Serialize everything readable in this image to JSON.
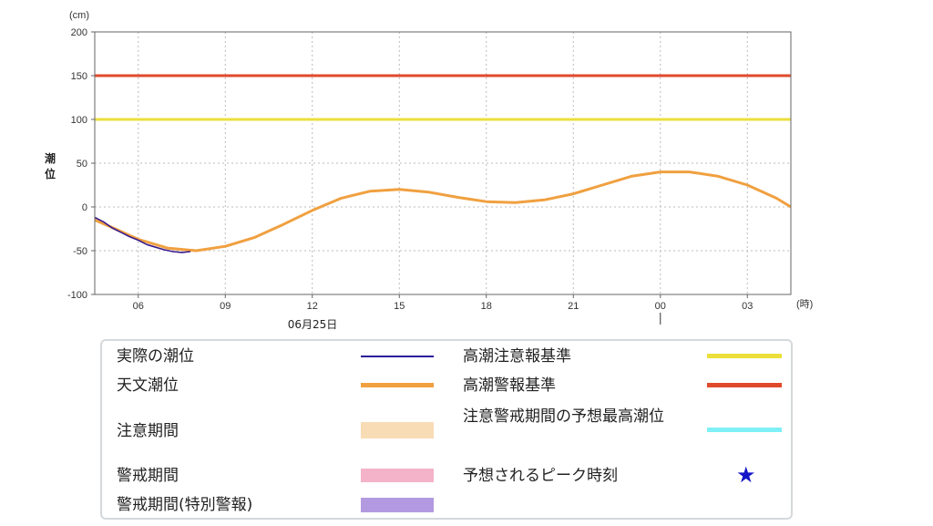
{
  "chart_data": {
    "type": "line",
    "ylabel": "潮位",
    "yunit": "(cm)",
    "xunit": "(時)",
    "date_label": "06月25日",
    "ylim": [
      -100,
      200
    ],
    "yticks": [
      -100,
      -50,
      0,
      50,
      100,
      150,
      200
    ],
    "xlim": [
      4.5,
      28.5
    ],
    "xticks": [
      {
        "h": 6,
        "label": "06"
      },
      {
        "h": 9,
        "label": "09"
      },
      {
        "h": 12,
        "label": "12"
      },
      {
        "h": 15,
        "label": "15"
      },
      {
        "h": 18,
        "label": "18"
      },
      {
        "h": 21,
        "label": "21"
      },
      {
        "h": 24,
        "label": "00"
      },
      {
        "h": 27,
        "label": "03"
      }
    ],
    "date_marker_h": 24,
    "grid": true,
    "thresholds": [
      {
        "name": "高潮警報基準",
        "value": 150,
        "color": "#e04a2c"
      },
      {
        "name": "高潮注意報基準",
        "value": 100,
        "color": "#ecdf3c"
      }
    ],
    "series": [
      {
        "name": "天文潮位",
        "color": "#f0a040",
        "x": [
          4.5,
          5,
          6,
          7,
          8,
          9,
          10,
          11,
          12,
          13,
          14,
          15,
          16,
          17,
          18,
          19,
          20,
          21,
          22,
          23,
          24,
          25,
          26,
          27,
          28,
          28.5
        ],
        "y": [
          -15,
          -22,
          -37,
          -47,
          -50,
          -45,
          -35,
          -20,
          -4,
          10,
          18,
          20,
          17,
          11,
          6,
          5,
          8,
          15,
          25,
          35,
          40,
          40,
          35,
          25,
          10,
          0
        ]
      },
      {
        "name": "実際の潮位",
        "color": "#3a1c8c",
        "x": [
          4.5,
          4.8,
          5.1,
          5.4,
          5.7,
          6.0,
          6.3,
          6.6,
          6.9,
          7.2,
          7.5,
          7.8
        ],
        "y": [
          -12,
          -17,
          -24,
          -29,
          -34,
          -38,
          -43,
          -46,
          -49,
          -51,
          -52,
          -51
        ]
      }
    ]
  },
  "legend": [
    {
      "label": "実際の潮位",
      "kind": "line",
      "color": "#2a1a9a"
    },
    {
      "label": "天文潮位",
      "kind": "line",
      "color": "#f0a040"
    },
    {
      "label": "注意期間",
      "kind": "box",
      "color": "#f8dcb5"
    },
    {
      "label": "警戒期間",
      "kind": "box",
      "color": "#f4b3c8"
    },
    {
      "label": "警戒期間(特別警報)",
      "kind": "box",
      "color": "#b39ae0"
    },
    {
      "label": "高潮注意報基準",
      "kind": "line",
      "color": "#ecdf3c"
    },
    {
      "label": "高潮警報基準",
      "kind": "line",
      "color": "#e04a2c"
    },
    {
      "label": "注意警戒期間の予想最高潮位",
      "kind": "line",
      "color": "#7ef0f6"
    },
    {
      "label": "予想されるピーク時刻",
      "kind": "star",
      "color": "#1414c8"
    }
  ]
}
